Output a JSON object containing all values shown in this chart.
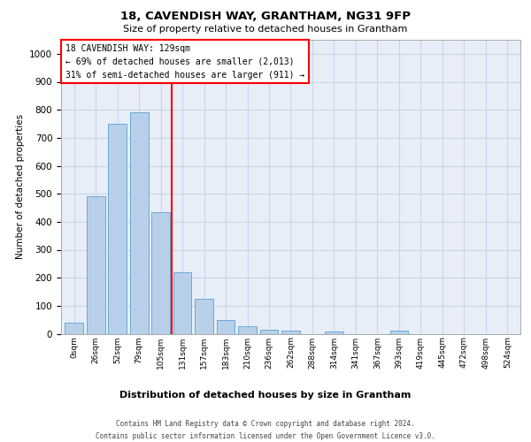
{
  "title1": "18, CAVENDISH WAY, GRANTHAM, NG31 9FP",
  "title2": "Size of property relative to detached houses in Grantham",
  "xlabel": "Distribution of detached houses by size in Grantham",
  "ylabel": "Number of detached properties",
  "bar_labels": [
    "0sqm",
    "26sqm",
    "52sqm",
    "79sqm",
    "105sqm",
    "131sqm",
    "157sqm",
    "183sqm",
    "210sqm",
    "236sqm",
    "262sqm",
    "288sqm",
    "314sqm",
    "341sqm",
    "367sqm",
    "393sqm",
    "419sqm",
    "445sqm",
    "472sqm",
    "498sqm",
    "524sqm"
  ],
  "bar_values": [
    40,
    490,
    750,
    790,
    435,
    220,
    125,
    50,
    27,
    15,
    10,
    0,
    8,
    0,
    0,
    10,
    0,
    0,
    0,
    0,
    0
  ],
  "bar_color": "#b8d0ea",
  "bar_edge_color": "#6aaad4",
  "vline_x": 4.5,
  "vline_color": "red",
  "annotation_text": "18 CAVENDISH WAY: 129sqm\n← 69% of detached houses are smaller (2,013)\n31% of semi-detached houses are larger (911) →",
  "annotation_box_color": "white",
  "annotation_box_edge": "red",
  "ylim": [
    0,
    1050
  ],
  "yticks": [
    0,
    100,
    200,
    300,
    400,
    500,
    600,
    700,
    800,
    900,
    1000
  ],
  "grid_color": "#c8d4e8",
  "bg_color": "#e8eef8",
  "footer1": "Contains HM Land Registry data © Crown copyright and database right 2024.",
  "footer2": "Contains public sector information licensed under the Open Government Licence v3.0."
}
